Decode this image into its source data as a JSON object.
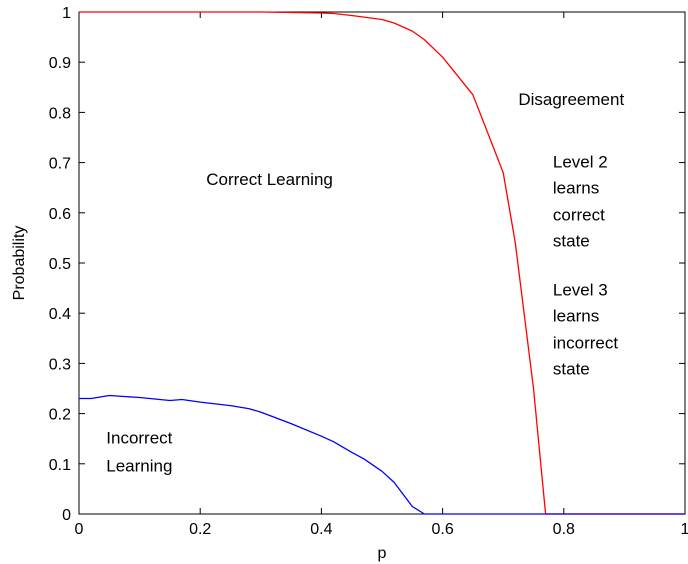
{
  "chart_data": {
    "type": "line",
    "title": "",
    "xlabel": "p",
    "ylabel": "Probability",
    "xlim": [
      0,
      1
    ],
    "ylim": [
      0,
      1
    ],
    "grid": false,
    "xticks": [
      "0",
      "0.2",
      "0.4",
      "0.6",
      "0.8",
      "1"
    ],
    "yticks": [
      "0",
      "0.1",
      "0.2",
      "0.3",
      "0.4",
      "0.5",
      "0.6",
      "0.7",
      "0.8",
      "0.9",
      "1"
    ],
    "series": [
      {
        "color": "#ff0000",
        "x": [
          0,
          0.05,
          0.1,
          0.15,
          0.2,
          0.25,
          0.3,
          0.35,
          0.4,
          0.42,
          0.45,
          0.5,
          0.52,
          0.55,
          0.57,
          0.6,
          0.62,
          0.65,
          0.7,
          0.72,
          0.75,
          0.77,
          0.8,
          0.85,
          0.9,
          0.95,
          1
        ],
        "y": [
          1,
          1,
          1,
          1,
          1,
          1,
          1,
          0.999,
          0.998,
          0.997,
          0.993,
          0.985,
          0.978,
          0.962,
          0.945,
          0.91,
          0.88,
          0.835,
          0.68,
          0.54,
          0.25,
          0,
          0,
          0,
          0,
          0,
          0
        ]
      },
      {
        "color": "#0000ff",
        "x": [
          0,
          0.02,
          0.05,
          0.1,
          0.15,
          0.17,
          0.2,
          0.25,
          0.28,
          0.3,
          0.35,
          0.4,
          0.42,
          0.45,
          0.47,
          0.5,
          0.52,
          0.55,
          0.57,
          0.6,
          0.65,
          0.7,
          0.75,
          0.8,
          0.85,
          0.9,
          0.95,
          1
        ],
        "y": [
          0.23,
          0.23,
          0.236,
          0.232,
          0.226,
          0.228,
          0.223,
          0.216,
          0.21,
          0.203,
          0.18,
          0.155,
          0.144,
          0.123,
          0.11,
          0.085,
          0.063,
          0.015,
          0,
          0,
          0,
          0,
          0,
          0,
          0,
          0,
          0,
          0
        ]
      }
    ],
    "annotations": [
      {
        "text": "Correct Learning",
        "x": 0.21,
        "y": 0.655
      },
      {
        "text": "Incorrect",
        "x": 0.045,
        "y": 0.14
      },
      {
        "text": "Learning",
        "x": 0.045,
        "y": 0.085
      },
      {
        "text": "Disagreement",
        "x": 0.725,
        "y": 0.815
      },
      {
        "text": "Level 2",
        "x": 0.782,
        "y": 0.69
      },
      {
        "text": "learns",
        "x": 0.782,
        "y": 0.638
      },
      {
        "text": "correct",
        "x": 0.782,
        "y": 0.585
      },
      {
        "text": "state",
        "x": 0.782,
        "y": 0.533
      },
      {
        "text": "Level 3",
        "x": 0.782,
        "y": 0.435
      },
      {
        "text": "learns",
        "x": 0.782,
        "y": 0.383
      },
      {
        "text": "incorrect",
        "x": 0.782,
        "y": 0.33
      },
      {
        "text": "state",
        "x": 0.782,
        "y": 0.278
      }
    ]
  }
}
